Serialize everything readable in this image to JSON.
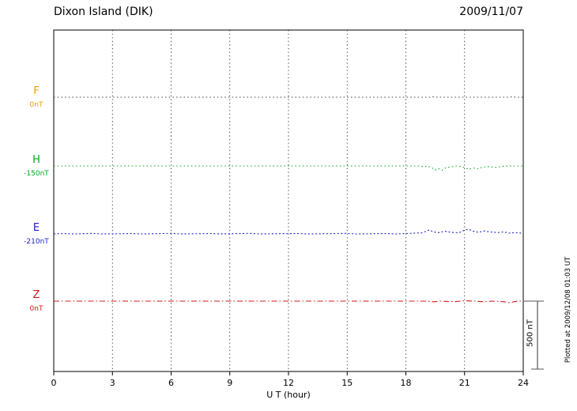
{
  "chart_data": {
    "type": "line",
    "title": "Dixon Island (DIK)",
    "date": "2009/11/07",
    "xlabel": "U T (hour)",
    "xlim": [
      0,
      24
    ],
    "x_ticks": [
      0,
      3,
      6,
      9,
      12,
      15,
      18,
      21,
      24
    ],
    "grid": "vertical-dotted",
    "legend_position": "left-of-traces",
    "scale_bar": {
      "label": "500 nT",
      "nT": 500
    },
    "plotted_at": "Plotted at 2009/12/08 01:03 UT",
    "series": [
      {
        "name": "F",
        "baseline_label": "0nT",
        "label_color": "#f0a000",
        "trace_color": "#404040",
        "dash": "1.5 3.2",
        "points": [
          [
            0,
            0
          ],
          [
            19.3,
            0
          ],
          [
            19.45,
            5
          ],
          [
            19.6,
            0
          ],
          [
            23.3,
            0
          ],
          [
            23.45,
            4
          ],
          [
            23.6,
            0
          ],
          [
            24,
            0
          ]
        ]
      },
      {
        "name": "H",
        "baseline_label": "-150nT",
        "label_color": "#00a818",
        "trace_color": "#00a818",
        "dash": "1.5 3.2",
        "points": [
          [
            0,
            0
          ],
          [
            18.7,
            0
          ],
          [
            18.9,
            -6
          ],
          [
            19.1,
            0
          ],
          [
            19.35,
            -15
          ],
          [
            19.5,
            -30
          ],
          [
            19.65,
            -18
          ],
          [
            19.85,
            -32
          ],
          [
            20.05,
            -12
          ],
          [
            20.3,
            -6
          ],
          [
            20.6,
            0
          ],
          [
            21.0,
            -10
          ],
          [
            21.2,
            -25
          ],
          [
            21.45,
            -15
          ],
          [
            21.7,
            -22
          ],
          [
            21.9,
            -8
          ],
          [
            22.2,
            -5
          ],
          [
            22.6,
            -10
          ],
          [
            22.9,
            -3
          ],
          [
            23.3,
            0
          ],
          [
            24,
            0
          ]
        ]
      },
      {
        "name": "E",
        "baseline_label": "-210nT",
        "label_color": "#2020cc",
        "trace_color": "#2020cc",
        "dash": "2 2.6",
        "points": [
          [
            0,
            0
          ],
          [
            0.5,
            3
          ],
          [
            1,
            0
          ],
          [
            2,
            4
          ],
          [
            2.5,
            0
          ],
          [
            4,
            3
          ],
          [
            4.5,
            0
          ],
          [
            6,
            4
          ],
          [
            6.5,
            0
          ],
          [
            8,
            3
          ],
          [
            8.5,
            0
          ],
          [
            10,
            4
          ],
          [
            10.5,
            0
          ],
          [
            12.5,
            3
          ],
          [
            13,
            0
          ],
          [
            15,
            4
          ],
          [
            15.5,
            0
          ],
          [
            17,
            3
          ],
          [
            17.5,
            0
          ],
          [
            18.8,
            8
          ],
          [
            19.0,
            18
          ],
          [
            19.2,
            30
          ],
          [
            19.4,
            15
          ],
          [
            19.7,
            10
          ],
          [
            20.0,
            20
          ],
          [
            20.3,
            12
          ],
          [
            20.7,
            8
          ],
          [
            21.0,
            28
          ],
          [
            21.2,
            35
          ],
          [
            21.45,
            20
          ],
          [
            21.7,
            12
          ],
          [
            22.0,
            22
          ],
          [
            22.3,
            15
          ],
          [
            22.7,
            10
          ],
          [
            23.0,
            15
          ],
          [
            23.3,
            6
          ],
          [
            23.6,
            10
          ],
          [
            24,
            5
          ]
        ]
      },
      {
        "name": "Z",
        "baseline_label": "0nT",
        "label_color": "#d01818",
        "trace_color": "#d01818",
        "dash": "7 3 1.5 3",
        "points": [
          [
            0,
            0
          ],
          [
            19.0,
            0
          ],
          [
            19.4,
            -5
          ],
          [
            19.8,
            0
          ],
          [
            20.5,
            -4
          ],
          [
            21.0,
            3
          ],
          [
            21.5,
            0
          ],
          [
            22.0,
            -5
          ],
          [
            22.4,
            0
          ],
          [
            23.0,
            -4
          ],
          [
            23.3,
            -12
          ],
          [
            23.5,
            -5
          ],
          [
            23.7,
            0
          ],
          [
            24,
            0
          ]
        ]
      }
    ]
  }
}
